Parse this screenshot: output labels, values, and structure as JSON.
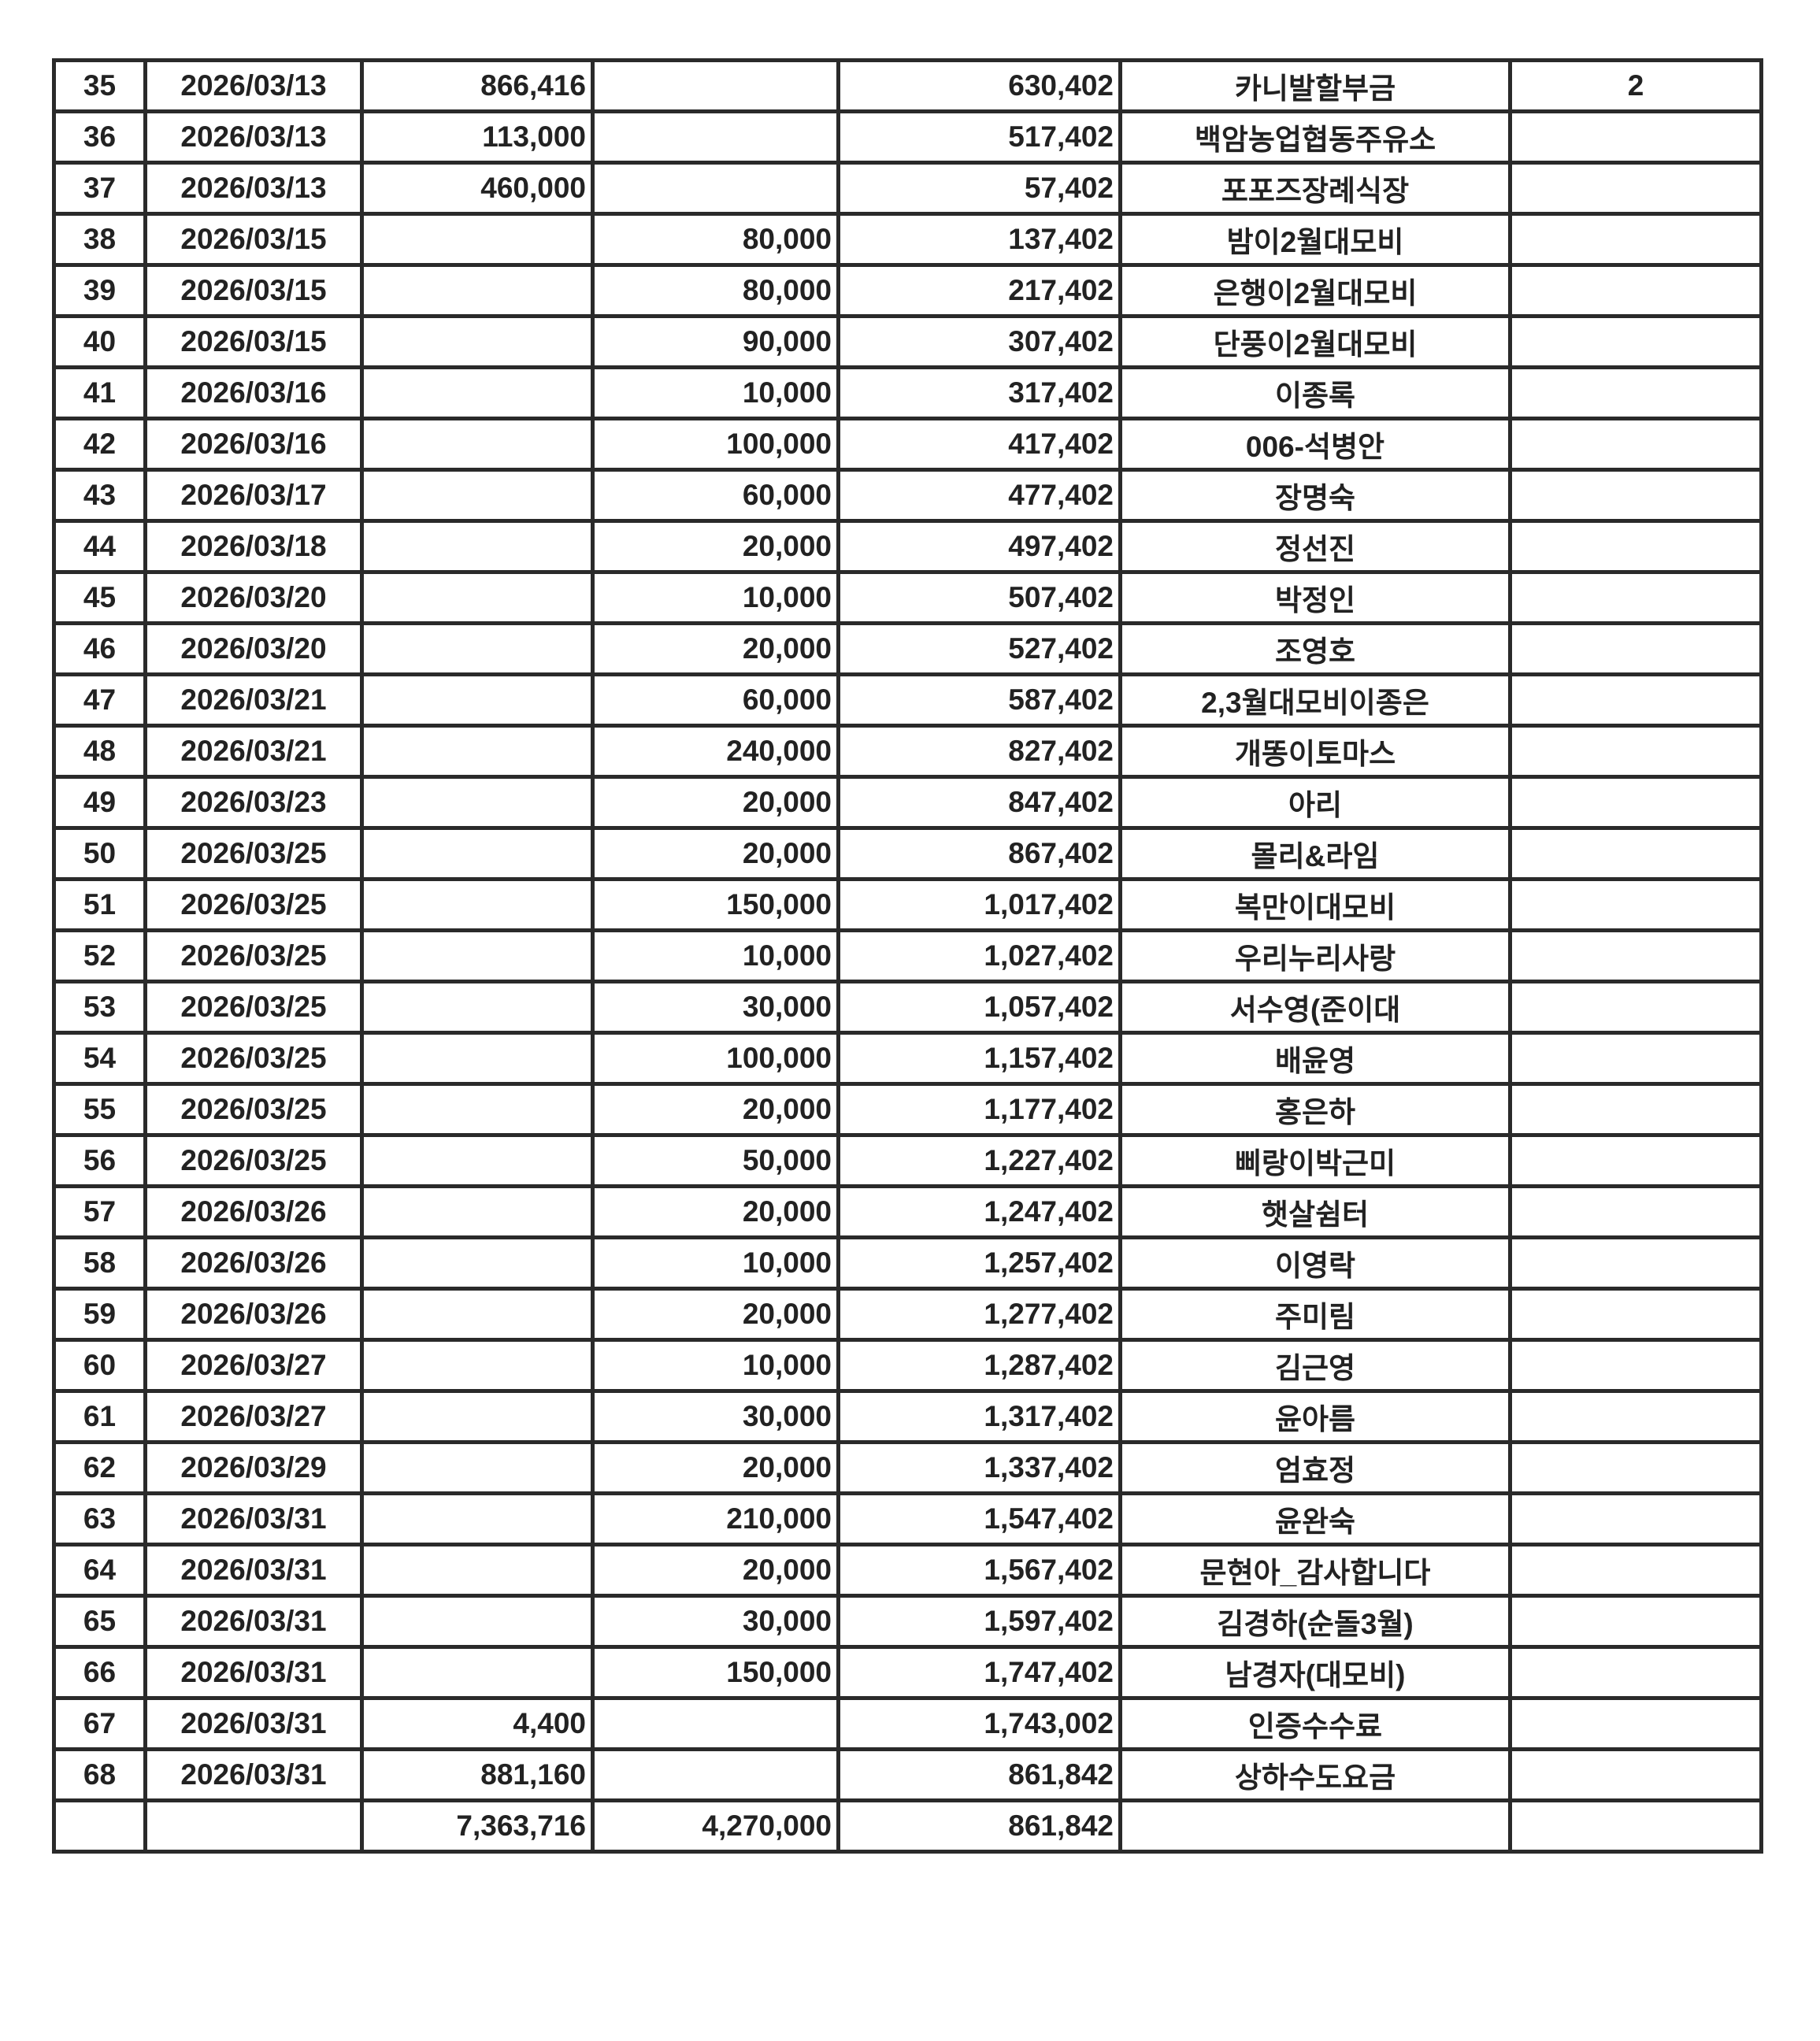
{
  "table": {
    "rows": [
      [
        "35",
        "2026/03/13",
        "866,416",
        "",
        "630,402",
        "카니발할부금",
        "2"
      ],
      [
        "36",
        "2026/03/13",
        "113,000",
        "",
        "517,402",
        "백암농업협동주유소",
        ""
      ],
      [
        "37",
        "2026/03/13",
        "460,000",
        "",
        "57,402",
        "포포즈장례식장",
        ""
      ],
      [
        "38",
        "2026/03/15",
        "",
        "80,000",
        "137,402",
        "밤이2월대모비",
        ""
      ],
      [
        "39",
        "2026/03/15",
        "",
        "80,000",
        "217,402",
        "은행이2월대모비",
        ""
      ],
      [
        "40",
        "2026/03/15",
        "",
        "90,000",
        "307,402",
        "단풍이2월대모비",
        ""
      ],
      [
        "41",
        "2026/03/16",
        "",
        "10,000",
        "317,402",
        "이종록",
        ""
      ],
      [
        "42",
        "2026/03/16",
        "",
        "100,000",
        "417,402",
        "006-석병안",
        ""
      ],
      [
        "43",
        "2026/03/17",
        "",
        "60,000",
        "477,402",
        "장명숙",
        ""
      ],
      [
        "44",
        "2026/03/18",
        "",
        "20,000",
        "497,402",
        "정선진",
        ""
      ],
      [
        "45",
        "2026/03/20",
        "",
        "10,000",
        "507,402",
        "박정인",
        ""
      ],
      [
        "46",
        "2026/03/20",
        "",
        "20,000",
        "527,402",
        "조영호",
        ""
      ],
      [
        "47",
        "2026/03/21",
        "",
        "60,000",
        "587,402",
        "2,3월대모비이종은",
        ""
      ],
      [
        "48",
        "2026/03/21",
        "",
        "240,000",
        "827,402",
        "개똥이토마스",
        ""
      ],
      [
        "49",
        "2026/03/23",
        "",
        "20,000",
        "847,402",
        "아리",
        ""
      ],
      [
        "50",
        "2026/03/25",
        "",
        "20,000",
        "867,402",
        "몰리&라임",
        ""
      ],
      [
        "51",
        "2026/03/25",
        "",
        "150,000",
        "1,017,402",
        "복만이대모비",
        ""
      ],
      [
        "52",
        "2026/03/25",
        "",
        "10,000",
        "1,027,402",
        "우리누리사랑",
        ""
      ],
      [
        "53",
        "2026/03/25",
        "",
        "30,000",
        "1,057,402",
        "서수영(준이대",
        ""
      ],
      [
        "54",
        "2026/03/25",
        "",
        "100,000",
        "1,157,402",
        "배윤영",
        ""
      ],
      [
        "55",
        "2026/03/25",
        "",
        "20,000",
        "1,177,402",
        "홍은하",
        ""
      ],
      [
        "56",
        "2026/03/25",
        "",
        "50,000",
        "1,227,402",
        "삐랑이박근미",
        ""
      ],
      [
        "57",
        "2026/03/26",
        "",
        "20,000",
        "1,247,402",
        "햇살쉼터",
        ""
      ],
      [
        "58",
        "2026/03/26",
        "",
        "10,000",
        "1,257,402",
        "이영락",
        ""
      ],
      [
        "59",
        "2026/03/26",
        "",
        "20,000",
        "1,277,402",
        "주미림",
        ""
      ],
      [
        "60",
        "2026/03/27",
        "",
        "10,000",
        "1,287,402",
        "김근영",
        ""
      ],
      [
        "61",
        "2026/03/27",
        "",
        "30,000",
        "1,317,402",
        "윤아름",
        ""
      ],
      [
        "62",
        "2026/03/29",
        "",
        "20,000",
        "1,337,402",
        "엄효정",
        ""
      ],
      [
        "63",
        "2026/03/31",
        "",
        "210,000",
        "1,547,402",
        "윤완숙",
        ""
      ],
      [
        "64",
        "2026/03/31",
        "",
        "20,000",
        "1,567,402",
        "문현아_감사합니다",
        ""
      ],
      [
        "65",
        "2026/03/31",
        "",
        "30,000",
        "1,597,402",
        "김경하(순돌3월)",
        ""
      ],
      [
        "66",
        "2026/03/31",
        "",
        "150,000",
        "1,747,402",
        "남경자(대모비)",
        ""
      ],
      [
        "67",
        "2026/03/31",
        "4,400",
        "",
        "1,743,002",
        "인증수수료",
        ""
      ],
      [
        "68",
        "2026/03/31",
        "881,160",
        "",
        "861,842",
        "상하수도요금",
        ""
      ]
    ],
    "total": [
      "",
      "",
      "7,363,716",
      "4,270,000",
      "861,842",
      "",
      ""
    ]
  }
}
